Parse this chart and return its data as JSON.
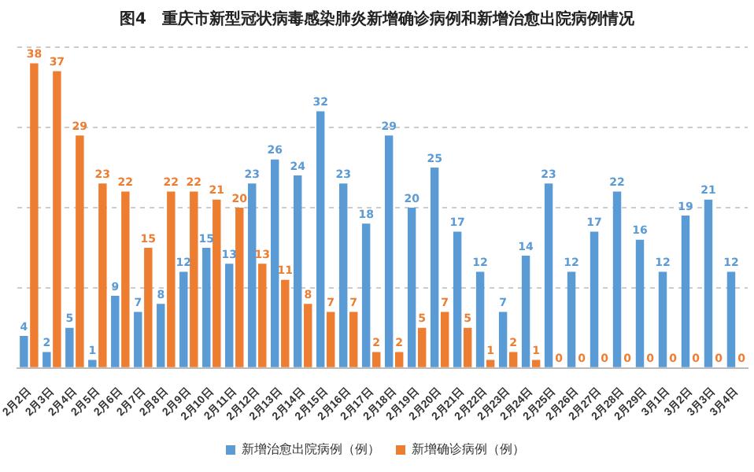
{
  "chart_data": {
    "type": "bar",
    "title": "图4　重庆市新型冠状病毒感染肺炎新增确诊病例和新增治愈出院病例情况",
    "categories": [
      "2月2日",
      "2月3日",
      "2月4日",
      "2月5日",
      "2月6日",
      "2月7日",
      "2月8日",
      "2月9日",
      "2月10日",
      "2月11日",
      "2月12日",
      "2月13日",
      "2月14日",
      "2月15日",
      "2月16日",
      "2月17日",
      "2月18日",
      "2月19日",
      "2月20日",
      "2月21日",
      "2月22日",
      "2月23日",
      "2月24日",
      "2月25日",
      "2月26日",
      "2月27日",
      "2月28日",
      "2月29日",
      "3月1日",
      "3月2日",
      "3月3日",
      "3月4日"
    ],
    "series": [
      {
        "name": "新增治愈出院病例（例）",
        "color": "#5b9bd5",
        "values": [
          4,
          2,
          5,
          1,
          9,
          7,
          8,
          12,
          15,
          13,
          23,
          26,
          24,
          32,
          23,
          18,
          29,
          20,
          25,
          17,
          12,
          7,
          14,
          23,
          12,
          17,
          22,
          16,
          12,
          19,
          21,
          12
        ]
      },
      {
        "name": "新增确诊病例（例）",
        "color": "#ed7d31",
        "values": [
          38,
          37,
          29,
          23,
          22,
          15,
          22,
          22,
          21,
          20,
          13,
          11,
          8,
          7,
          7,
          2,
          2,
          5,
          7,
          5,
          1,
          2,
          1,
          0,
          0,
          0,
          0,
          0,
          0,
          0,
          0,
          0
        ]
      }
    ],
    "ylim": [
      0,
      40
    ],
    "yticks": [
      {
        "value": 0,
        "label": null
      },
      {
        "value": 10,
        "label": null
      },
      {
        "value": 20,
        "label": null
      },
      {
        "value": 30,
        "label": null
      },
      {
        "value": 40,
        "label": null
      }
    ],
    "tick_labels": "x",
    "grid": "y",
    "legend": "bottom",
    "data_labels": true
  }
}
